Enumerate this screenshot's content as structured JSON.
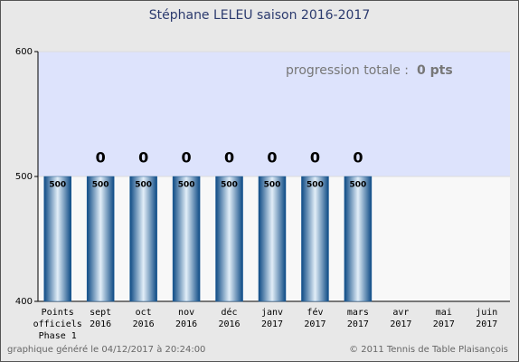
{
  "chart_data": {
    "type": "bar",
    "title": "Stéphane LELEU    saison 2016-2017",
    "annotation": {
      "label": "progression totale :",
      "value": "0 pts"
    },
    "categories": [
      [
        "Points",
        "officiels",
        "Phase 1"
      ],
      [
        "sept",
        "2016"
      ],
      [
        "oct",
        "2016"
      ],
      [
        "nov",
        "2016"
      ],
      [
        "déc",
        "2016"
      ],
      [
        "janv",
        "2017"
      ],
      [
        "fév",
        "2017"
      ],
      [
        "mars",
        "2017"
      ],
      [
        "avr",
        "2017"
      ],
      [
        "mai",
        "2017"
      ],
      [
        "juin",
        "2017"
      ]
    ],
    "values": [
      500,
      500,
      500,
      500,
      500,
      500,
      500,
      500,
      null,
      null,
      null
    ],
    "progression": [
      null,
      0,
      0,
      0,
      0,
      0,
      0,
      0,
      null,
      null,
      null
    ],
    "color": "#1b5a96",
    "ylim": [
      400,
      600
    ],
    "yticks": [
      400,
      500,
      600
    ],
    "bands": [
      "#f8f8f8",
      "#dde3fc"
    ],
    "grid": true,
    "footer_left": "graphique généré le 04/12/2017 à 20:24:00",
    "footer_right": "© 2011 Tennis de Table Plaisançois"
  }
}
